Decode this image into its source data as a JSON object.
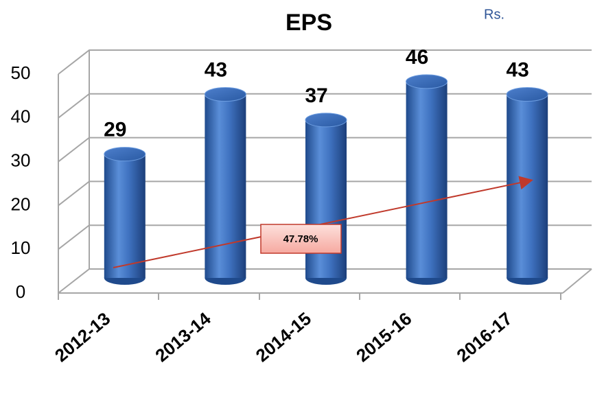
{
  "chart_data": {
    "type": "bar",
    "title": "EPS",
    "subtitle": "Rs.",
    "categories": [
      "2012-13",
      "2013-14",
      "2014-15",
      "2015-16",
      "2016-17"
    ],
    "values": [
      29,
      43,
      37,
      46,
      43
    ],
    "color": "#3a6fc0",
    "ylim": [
      0,
      50
    ],
    "yticks": [
      0,
      10,
      20,
      30,
      40,
      50
    ],
    "grid": true,
    "annotation": "47.78%"
  }
}
